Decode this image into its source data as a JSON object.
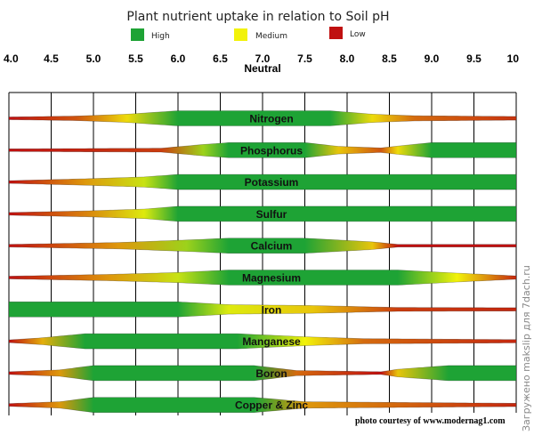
{
  "chart_data": {
    "type": "band",
    "title": "Plant nutrient uptake in relation to Soil pH",
    "legend": [
      {
        "label": "High",
        "color": "#1ea335"
      },
      {
        "label": "Medium",
        "color": "#f2f20a"
      },
      {
        "label": "Low",
        "color": "#c01010"
      }
    ],
    "x_ticks": [
      "4.0",
      "4.5",
      "5.0",
      "5.5",
      "6.0",
      "6.5",
      "7.0",
      "7.5",
      "8.0",
      "8.5",
      "9.0",
      "9.5",
      "10"
    ],
    "x_range": [
      4.0,
      10.0
    ],
    "neutral_label": "Neutral",
    "neutral_ph": 7.0,
    "level_scale": "0 = low (red), 0.5 = medium (yellow), 1 = high (green); band thickness grows with availability",
    "series": [
      {
        "name": "Nitrogen",
        "points": [
          [
            4.0,
            0.0
          ],
          [
            4.8,
            0.15
          ],
          [
            5.4,
            0.45
          ],
          [
            6.0,
            1.0
          ],
          [
            7.8,
            1.0
          ],
          [
            8.3,
            0.45
          ],
          [
            8.8,
            0.2
          ],
          [
            10.0,
            0.08
          ]
        ]
      },
      {
        "name": "Phosphorus",
        "points": [
          [
            4.0,
            0.0
          ],
          [
            5.8,
            0.1
          ],
          [
            6.3,
            0.7
          ],
          [
            6.6,
            1.0
          ],
          [
            7.5,
            1.0
          ],
          [
            7.9,
            0.4
          ],
          [
            8.4,
            0.15
          ],
          [
            8.6,
            0.45
          ],
          [
            9.0,
            1.0
          ],
          [
            10.0,
            1.0
          ]
        ]
      },
      {
        "name": "Potassium",
        "points": [
          [
            4.0,
            0.0
          ],
          [
            4.9,
            0.3
          ],
          [
            5.6,
            0.6
          ],
          [
            6.0,
            1.0
          ],
          [
            10.0,
            1.0
          ]
        ]
      },
      {
        "name": "Sulfur",
        "points": [
          [
            4.0,
            0.0
          ],
          [
            4.9,
            0.25
          ],
          [
            5.6,
            0.55
          ],
          [
            6.0,
            1.0
          ],
          [
            10.0,
            1.0
          ]
        ]
      },
      {
        "name": "Calcium",
        "points": [
          [
            4.0,
            0.0
          ],
          [
            5.3,
            0.3
          ],
          [
            6.1,
            0.7
          ],
          [
            6.6,
            1.0
          ],
          [
            7.5,
            1.0
          ],
          [
            8.3,
            0.4
          ],
          [
            8.6,
            0.0
          ],
          [
            10.0,
            0.0
          ]
        ]
      },
      {
        "name": "Magnesium",
        "points": [
          [
            4.0,
            0.0
          ],
          [
            5.2,
            0.3
          ],
          [
            6.0,
            0.6
          ],
          [
            6.6,
            1.0
          ],
          [
            8.6,
            1.0
          ],
          [
            9.3,
            0.5
          ],
          [
            9.7,
            0.25
          ],
          [
            10.0,
            0.05
          ]
        ]
      },
      {
        "name": "Iron",
        "points": [
          [
            4.0,
            1.0
          ],
          [
            6.0,
            1.0
          ],
          [
            6.6,
            0.55
          ],
          [
            7.6,
            0.4
          ],
          [
            8.6,
            0.1
          ],
          [
            10.0,
            0.05
          ]
        ]
      },
      {
        "name": "Manganese",
        "points": [
          [
            4.0,
            0.0
          ],
          [
            4.4,
            0.35
          ],
          [
            4.9,
            1.0
          ],
          [
            6.7,
            1.0
          ],
          [
            7.5,
            0.5
          ],
          [
            8.2,
            0.2
          ],
          [
            10.0,
            0.05
          ]
        ]
      },
      {
        "name": "Boron",
        "points": [
          [
            4.0,
            0.0
          ],
          [
            4.6,
            0.3
          ],
          [
            5.0,
            1.0
          ],
          [
            6.9,
            1.0
          ],
          [
            7.4,
            0.2
          ],
          [
            8.4,
            0.0
          ],
          [
            8.6,
            0.4
          ],
          [
            9.2,
            1.0
          ],
          [
            10.0,
            1.0
          ]
        ]
      },
      {
        "name": "Copper & Zinc",
        "points": [
          [
            4.0,
            0.0
          ],
          [
            4.6,
            0.3
          ],
          [
            5.0,
            1.0
          ],
          [
            6.9,
            1.0
          ],
          [
            7.5,
            0.3
          ],
          [
            10.0,
            0.05
          ]
        ]
      }
    ]
  },
  "credit": "photo courtesy of www.modernag1.com",
  "watermark": "Загружено makslip для 7dach.ru"
}
